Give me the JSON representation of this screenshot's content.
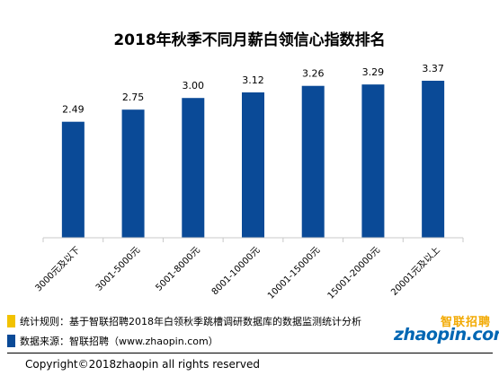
{
  "chart_data": {
    "type": "bar",
    "title": "2018年秋季不同月薪白领信心指数排名",
    "categories": [
      "3000元及以下",
      "3001-5000元",
      "5001-8000元",
      "8001-10000元",
      "10001-15000元",
      "15001-20000元",
      "20001元及以上"
    ],
    "values": [
      2.49,
      2.75,
      3.0,
      3.12,
      3.26,
      3.29,
      3.37
    ],
    "value_labels": [
      "2.49",
      "2.75",
      "3.00",
      "3.12",
      "3.26",
      "3.29",
      "3.37"
    ],
    "xlabel": "",
    "ylabel": "",
    "ylim": [
      0,
      3.5
    ],
    "grid": false,
    "bar_color": "#0a4a97"
  },
  "notes": {
    "method_label": "统计规则：基于智联招聘2018年白领秋季跳槽调研数据库的数据监测统计分析",
    "method_color": "#f2c200",
    "source_label": "数据来源：智联招聘（www.zhaopin.com）",
    "source_color": "#0a4a97"
  },
  "logo": {
    "cn_text": "智联招聘",
    "en_text": "zhaopin.com"
  },
  "copyright": "Copyright©2018zhaopin all rights reserved"
}
